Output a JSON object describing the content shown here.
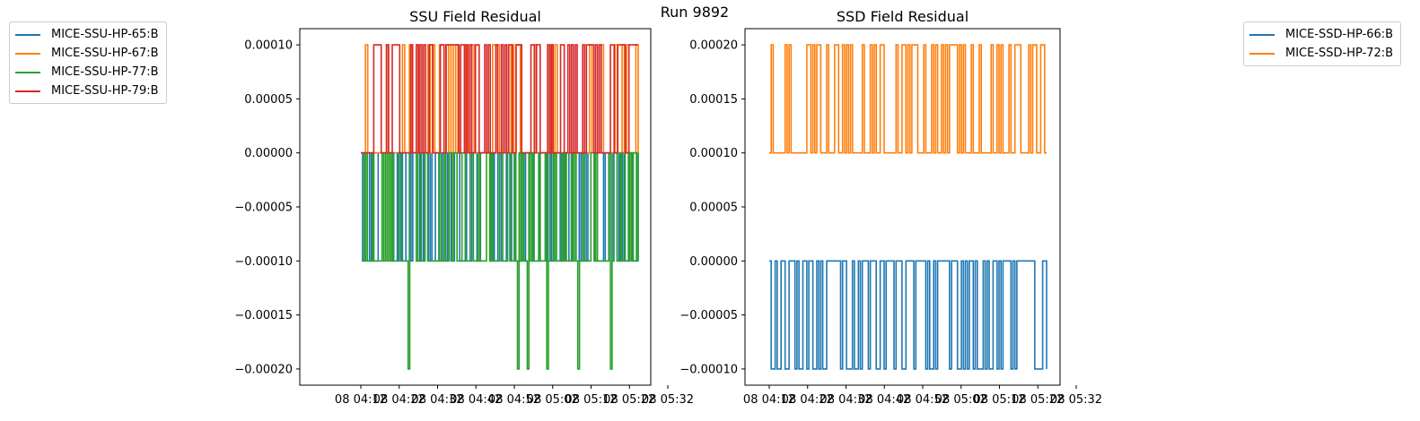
{
  "suptitle": "Run 9892",
  "chart_data": [
    {
      "type": "line",
      "title": "SSU Field Residual",
      "xlabel": "",
      "ylabel": "",
      "ylim": [
        -0.000215,
        0.000115
      ],
      "yticks": [
        -0.0002,
        -0.00015,
        -0.0001,
        -5e-05,
        0,
        5e-05,
        0.0001
      ],
      "ytick_labels": [
        "−0.00020",
        "−0.00015",
        "−0.00010",
        "−0.00005",
        "0.00000",
        "0.00005",
        "0.00010"
      ],
      "xtick_labels": [
        "08 04:12",
        "08 04:22",
        "08 04:32",
        "08 04:42",
        "08 04:52",
        "08 05:02",
        "08 05:12",
        "08 05:22",
        "08 05:32"
      ],
      "legend_loc": "outside-left",
      "series": [
        {
          "name": "MICE-SSU-HP-65:B",
          "color": "#1f77b4",
          "values": [
            0,
            -0.0001
          ]
        },
        {
          "name": "MICE-SSU-HP-67:B",
          "color": "#ff7f0e",
          "values": [
            0,
            0.0001,
            -0.0001
          ]
        },
        {
          "name": "MICE-SSU-HP-77:B",
          "color": "#2ca02c",
          "values": [
            0,
            -0.0001,
            -0.0002
          ]
        },
        {
          "name": "MICE-SSU-HP-79:B",
          "color": "#d62728",
          "values": [
            0,
            0.0001
          ]
        }
      ]
    },
    {
      "type": "line",
      "title": "SSD Field Residual",
      "xlabel": "",
      "ylabel": "",
      "ylim": [
        -0.000115,
        0.000215
      ],
      "yticks": [
        -0.0001,
        -5e-05,
        0,
        5e-05,
        0.0001,
        0.00015,
        0.0002
      ],
      "ytick_labels": [
        "−0.00010",
        "−0.00005",
        "0.00000",
        "0.00005",
        "0.00010",
        "0.00015",
        "0.00020"
      ],
      "xtick_labels": [
        "08 04:12",
        "08 04:22",
        "08 04:32",
        "08 04:42",
        "08 04:52",
        "08 05:02",
        "08 05:12",
        "08 05:22",
        "08 05:32"
      ],
      "legend_loc": "outside-right",
      "series": [
        {
          "name": "MICE-SSD-HP-66:B",
          "color": "#1f77b4",
          "values": [
            0,
            -0.0001
          ]
        },
        {
          "name": "MICE-SSD-HP-72:B",
          "color": "#ff7f0e",
          "values": [
            0.0001,
            0,
            0.0002
          ]
        }
      ]
    }
  ]
}
